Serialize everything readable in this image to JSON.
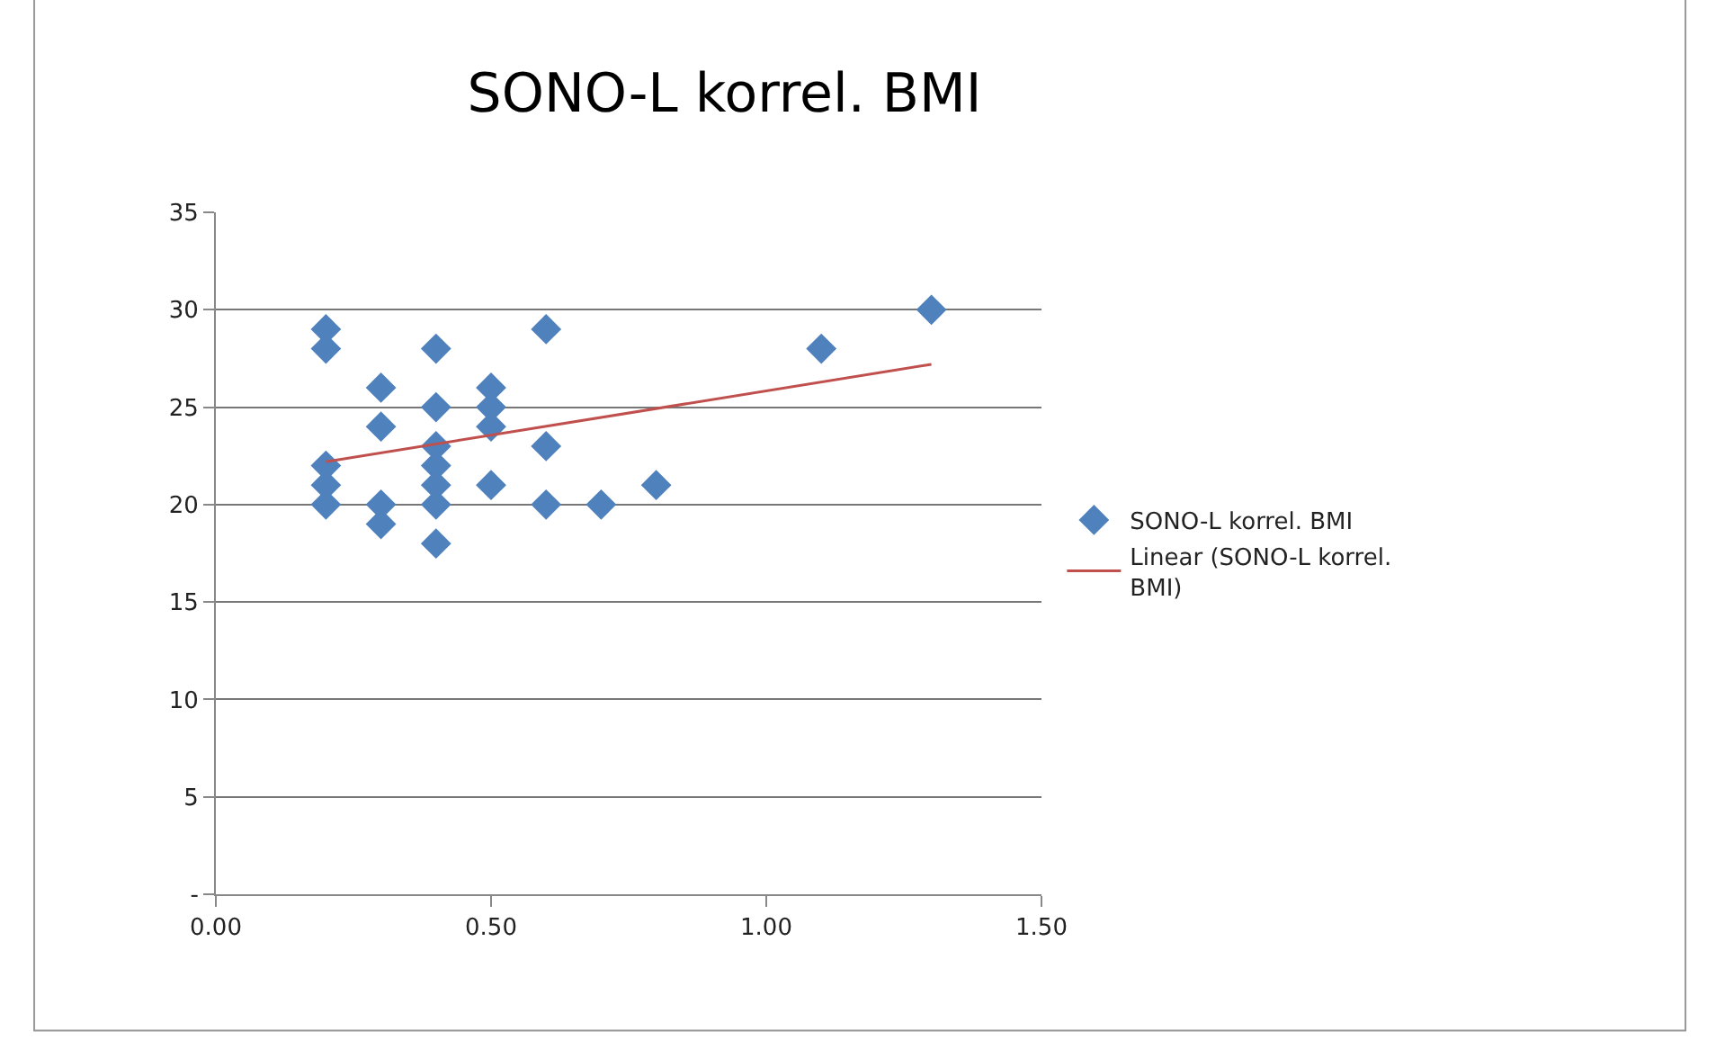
{
  "chart_data": {
    "type": "scatter",
    "title": "SONO-L korrel. BMI",
    "marker": "diamond",
    "grid": "y",
    "legend": "right",
    "xlim": [
      0,
      1.5
    ],
    "xticks": [
      {
        "value": 0,
        "label": "0.00"
      },
      {
        "value": 0.5,
        "label": "0.50"
      },
      {
        "value": 1,
        "label": "1.00"
      },
      {
        "value": 1.5,
        "label": "1.50"
      }
    ],
    "ylim": [
      0,
      35
    ],
    "yticks": [
      {
        "value": 0,
        "label": "-"
      },
      5,
      10,
      15,
      20,
      25,
      30,
      35
    ],
    "series": [
      {
        "name": "SONO-L korrel. BMI",
        "color": "#4f81bd",
        "x": [
          0.2,
          0.2,
          0.2,
          0.2,
          0.2,
          0.3,
          0.3,
          0.3,
          0.3,
          0.4,
          0.4,
          0.4,
          0.4,
          0.4,
          0.4,
          0.4,
          0.5,
          0.5,
          0.5,
          0.5,
          0.6,
          0.6,
          0.6,
          0.7,
          0.8,
          1.1,
          1.3
        ],
        "values": [
          29,
          28,
          22,
          21,
          20,
          26,
          24,
          20,
          19,
          28,
          25,
          23,
          22,
          21,
          20,
          18,
          26,
          25,
          24,
          21,
          29,
          23,
          20,
          20,
          21,
          28,
          30
        ]
      },
      {
        "name": "Linear (SONO-L korrel. BMI)",
        "type": "line",
        "marker": "none",
        "color": "#c0504d",
        "x": [
          0.2,
          1.3
        ],
        "values": [
          22.2,
          27.2
        ]
      }
    ]
  }
}
